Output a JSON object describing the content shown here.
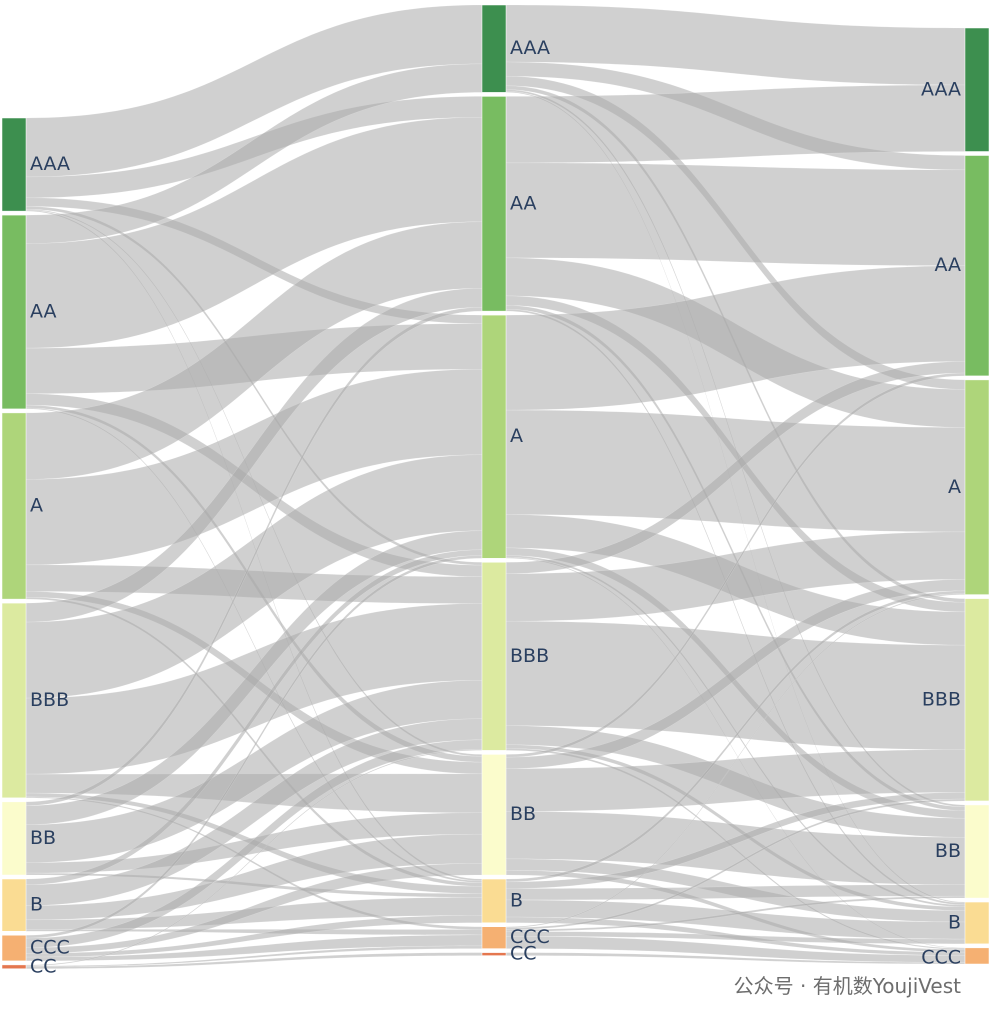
{
  "watermark": {
    "text": "公众号 · 有机数YoujiVest"
  },
  "colors": {
    "link": "#a9a9a9",
    "nodes": {
      "AAA": "#3d8f4f",
      "AA": "#78bc61",
      "A": "#aed57a",
      "BBB": "#dceaa0",
      "BB": "#fbfccc",
      "B": "#fadc93",
      "CCC": "#f5b072",
      "CC": "#e4774f"
    }
  },
  "chart_data": {
    "type": "sankey",
    "title": "",
    "ratings": [
      "AAA",
      "AA",
      "A",
      "BBB",
      "BB",
      "B",
      "CCC",
      "CC"
    ],
    "columns": [
      {
        "nodes": [
          {
            "label": "AAA",
            "value": 98
          },
          {
            "label": "AA",
            "value": 204
          },
          {
            "label": "A",
            "value": 196
          },
          {
            "label": "BBB",
            "value": 205
          },
          {
            "label": "BB",
            "value": 77
          },
          {
            "label": "B",
            "value": 55
          },
          {
            "label": "CCC",
            "value": 27
          },
          {
            "label": "CC",
            "value": 4
          }
        ]
      },
      {
        "nodes": [
          {
            "label": "AAA",
            "value": 92
          },
          {
            "label": "AA",
            "value": 226
          },
          {
            "label": "A",
            "value": 256
          },
          {
            "label": "BBB",
            "value": 198
          },
          {
            "label": "BB",
            "value": 127
          },
          {
            "label": "B",
            "value": 46
          },
          {
            "label": "CCC",
            "value": 23
          },
          {
            "label": "CC",
            "value": 3
          }
        ]
      },
      {
        "nodes": [
          {
            "label": "AAA",
            "value": 130
          },
          {
            "label": "AA",
            "value": 232
          },
          {
            "label": "A",
            "value": 226
          },
          {
            "label": "BBB",
            "value": 213
          },
          {
            "label": "BB",
            "value": 98
          },
          {
            "label": "B",
            "value": 44
          },
          {
            "label": "CCC",
            "value": 17
          }
        ]
      }
    ],
    "links": [
      {
        "from": 0,
        "source": "AAA",
        "target": "AAA",
        "value": 62
      },
      {
        "from": 0,
        "source": "AAA",
        "target": "AA",
        "value": 22
      },
      {
        "from": 0,
        "source": "AAA",
        "target": "A",
        "value": 9
      },
      {
        "from": 0,
        "source": "AAA",
        "target": "BBB",
        "value": 3
      },
      {
        "from": 0,
        "source": "AAA",
        "target": "BB",
        "value": 1
      },
      {
        "from": 0,
        "source": "AAA",
        "target": "B",
        "value": 1
      },
      {
        "from": 0,
        "source": "AA",
        "target": "AAA",
        "value": 30
      },
      {
        "from": 0,
        "source": "AA",
        "target": "AA",
        "value": 110
      },
      {
        "from": 0,
        "source": "AA",
        "target": "A",
        "value": 48
      },
      {
        "from": 0,
        "source": "AA",
        "target": "BBB",
        "value": 12
      },
      {
        "from": 0,
        "source": "AA",
        "target": "BB",
        "value": 3
      },
      {
        "from": 0,
        "source": "AA",
        "target": "B",
        "value": 1
      },
      {
        "from": 0,
        "source": "A",
        "target": "AA",
        "value": 70
      },
      {
        "from": 0,
        "source": "A",
        "target": "A",
        "value": 90
      },
      {
        "from": 0,
        "source": "A",
        "target": "BBB",
        "value": 28
      },
      {
        "from": 0,
        "source": "A",
        "target": "BB",
        "value": 6
      },
      {
        "from": 0,
        "source": "A",
        "target": "B",
        "value": 2
      },
      {
        "from": 0,
        "source": "BBB",
        "target": "AA",
        "value": 20
      },
      {
        "from": 0,
        "source": "BBB",
        "target": "A",
        "value": 80
      },
      {
        "from": 0,
        "source": "BBB",
        "target": "BBB",
        "value": 80
      },
      {
        "from": 0,
        "source": "BBB",
        "target": "BB",
        "value": 20
      },
      {
        "from": 0,
        "source": "BBB",
        "target": "B",
        "value": 4
      },
      {
        "from": 0,
        "source": "BBB",
        "target": "CCC",
        "value": 1
      },
      {
        "from": 0,
        "source": "BB",
        "target": "AA",
        "value": 4
      },
      {
        "from": 0,
        "source": "BB",
        "target": "A",
        "value": 20
      },
      {
        "from": 0,
        "source": "BB",
        "target": "BBB",
        "value": 40
      },
      {
        "from": 0,
        "source": "BB",
        "target": "BB",
        "value": 11
      },
      {
        "from": 0,
        "source": "BB",
        "target": "B",
        "value": 2
      },
      {
        "from": 0,
        "source": "B",
        "target": "A",
        "value": 6
      },
      {
        "from": 0,
        "source": "B",
        "target": "BBB",
        "value": 22
      },
      {
        "from": 0,
        "source": "B",
        "target": "BB",
        "value": 15
      },
      {
        "from": 0,
        "source": "B",
        "target": "B",
        "value": 10
      },
      {
        "from": 0,
        "source": "B",
        "target": "CCC",
        "value": 2
      },
      {
        "from": 0,
        "source": "CCC",
        "target": "A",
        "value": 3
      },
      {
        "from": 0,
        "source": "CCC",
        "target": "BBB",
        "value": 10
      },
      {
        "from": 0,
        "source": "CCC",
        "target": "BB",
        "value": 6
      },
      {
        "from": 0,
        "source": "CCC",
        "target": "B",
        "value": 4
      },
      {
        "from": 0,
        "source": "CCC",
        "target": "CCC",
        "value": 4
      },
      {
        "from": 0,
        "source": "CC",
        "target": "BBB",
        "value": 1
      },
      {
        "from": 0,
        "source": "CC",
        "target": "CCC",
        "value": 1
      },
      {
        "from": 0,
        "source": "CC",
        "target": "CC",
        "value": 2
      },
      {
        "from": 1,
        "source": "AAA",
        "target": "AAA",
        "value": 60
      },
      {
        "from": 1,
        "source": "AAA",
        "target": "AA",
        "value": 15
      },
      {
        "from": 1,
        "source": "AAA",
        "target": "A",
        "value": 10
      },
      {
        "from": 1,
        "source": "AAA",
        "target": "BBB",
        "value": 4
      },
      {
        "from": 1,
        "source": "AAA",
        "target": "BB",
        "value": 2
      },
      {
        "from": 1,
        "source": "AAA",
        "target": "B",
        "value": 1
      },
      {
        "from": 1,
        "source": "AA",
        "target": "AAA",
        "value": 70
      },
      {
        "from": 1,
        "source": "AA",
        "target": "AA",
        "value": 100
      },
      {
        "from": 1,
        "source": "AA",
        "target": "A",
        "value": 40
      },
      {
        "from": 1,
        "source": "AA",
        "target": "BBB",
        "value": 10
      },
      {
        "from": 1,
        "source": "AA",
        "target": "BB",
        "value": 4
      },
      {
        "from": 1,
        "source": "AA",
        "target": "B",
        "value": 2
      },
      {
        "from": 1,
        "source": "A",
        "target": "AA",
        "value": 100
      },
      {
        "from": 1,
        "source": "A",
        "target": "A",
        "value": 110
      },
      {
        "from": 1,
        "source": "A",
        "target": "BBB",
        "value": 35
      },
      {
        "from": 1,
        "source": "A",
        "target": "BB",
        "value": 8
      },
      {
        "from": 1,
        "source": "A",
        "target": "B",
        "value": 2
      },
      {
        "from": 1,
        "source": "A",
        "target": "CCC",
        "value": 1
      },
      {
        "from": 1,
        "source": "BBB",
        "target": "AA",
        "value": 12
      },
      {
        "from": 1,
        "source": "BBB",
        "target": "A",
        "value": 50
      },
      {
        "from": 1,
        "source": "BBB",
        "target": "BBB",
        "value": 110
      },
      {
        "from": 1,
        "source": "BBB",
        "target": "BB",
        "value": 20
      },
      {
        "from": 1,
        "source": "BBB",
        "target": "B",
        "value": 4
      },
      {
        "from": 1,
        "source": "BBB",
        "target": "CCC",
        "value": 2
      },
      {
        "from": 1,
        "source": "BB",
        "target": "AA",
        "value": 3
      },
      {
        "from": 1,
        "source": "BB",
        "target": "A",
        "value": 12
      },
      {
        "from": 1,
        "source": "BB",
        "target": "BBB",
        "value": 45
      },
      {
        "from": 1,
        "source": "BB",
        "target": "BB",
        "value": 50
      },
      {
        "from": 1,
        "source": "BB",
        "target": "B",
        "value": 12
      },
      {
        "from": 1,
        "source": "BB",
        "target": "CCC",
        "value": 5
      },
      {
        "from": 1,
        "source": "B",
        "target": "A",
        "value": 3
      },
      {
        "from": 1,
        "source": "B",
        "target": "BBB",
        "value": 7
      },
      {
        "from": 1,
        "source": "B",
        "target": "BB",
        "value": 12
      },
      {
        "from": 1,
        "source": "B",
        "target": "B",
        "value": 18
      },
      {
        "from": 1,
        "source": "B",
        "target": "CCC",
        "value": 6
      },
      {
        "from": 1,
        "source": "CCC",
        "target": "A",
        "value": 1
      },
      {
        "from": 1,
        "source": "CCC",
        "target": "BBB",
        "value": 2
      },
      {
        "from": 1,
        "source": "CCC",
        "target": "BB",
        "value": 2
      },
      {
        "from": 1,
        "source": "CCC",
        "target": "B",
        "value": 5
      },
      {
        "from": 1,
        "source": "CCC",
        "target": "CCC",
        "value": 13
      },
      {
        "from": 1,
        "source": "CC",
        "target": "CCC",
        "value": 3
      }
    ]
  }
}
